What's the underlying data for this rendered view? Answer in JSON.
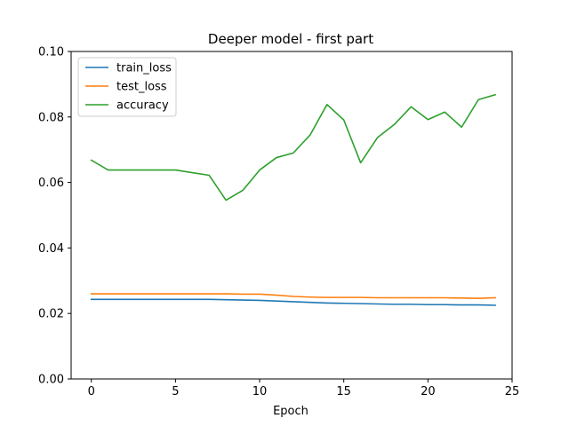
{
  "chart_data": {
    "type": "line",
    "title": "Deeper model - first part",
    "xlabel": "Epoch",
    "ylabel": "",
    "xlim": [
      -1.2,
      25
    ],
    "ylim": [
      0,
      0.1
    ],
    "xticks": [
      0,
      5,
      10,
      15,
      20,
      25
    ],
    "xtick_labels": [
      "0",
      "5",
      "10",
      "15",
      "20",
      "25"
    ],
    "yticks": [
      0,
      0.02,
      0.04,
      0.06,
      0.08,
      0.1
    ],
    "ytick_labels": [
      "0.00",
      "0.02",
      "0.04",
      "0.06",
      "0.08",
      "0.10"
    ],
    "grid": false,
    "legend_position": "top-left",
    "x": [
      0,
      1,
      2,
      3,
      4,
      5,
      6,
      7,
      8,
      9,
      10,
      11,
      12,
      13,
      14,
      15,
      16,
      17,
      18,
      19,
      20,
      21,
      22,
      23,
      24
    ],
    "series": [
      {
        "name": "train_loss",
        "color": "#1f77b4",
        "values": [
          0.0243,
          0.0243,
          0.0243,
          0.0243,
          0.0243,
          0.0243,
          0.0243,
          0.0243,
          0.0242,
          0.0241,
          0.024,
          0.0238,
          0.0236,
          0.0234,
          0.0232,
          0.0231,
          0.023,
          0.0229,
          0.0228,
          0.0228,
          0.0227,
          0.0227,
          0.0226,
          0.0226,
          0.0225
        ]
      },
      {
        "name": "test_loss",
        "color": "#ff7f0e",
        "values": [
          0.026,
          0.026,
          0.026,
          0.026,
          0.026,
          0.026,
          0.026,
          0.026,
          0.026,
          0.0259,
          0.0259,
          0.0256,
          0.0252,
          0.025,
          0.0249,
          0.0249,
          0.0249,
          0.0248,
          0.0248,
          0.0248,
          0.0248,
          0.0248,
          0.0247,
          0.0246,
          0.0248
        ]
      },
      {
        "name": "accuracy",
        "color": "#2ca02c",
        "values": [
          0.0668,
          0.0638,
          0.0638,
          0.0638,
          0.0638,
          0.0638,
          0.063,
          0.0622,
          0.0546,
          0.0576,
          0.0638,
          0.0676,
          0.069,
          0.0745,
          0.0838,
          0.0791,
          0.066,
          0.0737,
          0.0777,
          0.0831,
          0.0792,
          0.0815,
          0.0769,
          0.0853,
          0.0868
        ]
      }
    ]
  }
}
